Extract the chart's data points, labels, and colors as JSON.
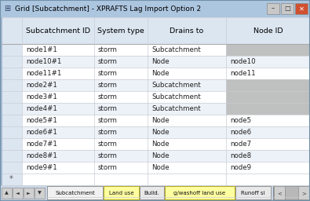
{
  "title": "Grid [Subcatchment] - XPRAFTS Lag Import Option 2",
  "columns": [
    "Subcatchment ID",
    "System type",
    "Drains to",
    "Node ID"
  ],
  "rows": [
    [
      "node1#1",
      "storm",
      "Subcatchment",
      ""
    ],
    [
      "node10#1",
      "storm",
      "Node",
      "node10"
    ],
    [
      "node11#1",
      "storm",
      "Node",
      "node11"
    ],
    [
      "node2#1",
      "storm",
      "Subcatchment",
      ""
    ],
    [
      "node3#1",
      "storm",
      "Subcatchment",
      ""
    ],
    [
      "node4#1",
      "storm",
      "Subcatchment",
      ""
    ],
    [
      "node5#1",
      "storm",
      "Node",
      "node5"
    ],
    [
      "node6#1",
      "storm",
      "Node",
      "node6"
    ],
    [
      "node7#1",
      "storm",
      "Node",
      "node7"
    ],
    [
      "node8#1",
      "storm",
      "Node",
      "node8"
    ],
    [
      "node9#1",
      "storm",
      "Node",
      "node9"
    ]
  ],
  "tabs": [
    "Subcatchment",
    "Land use",
    "Build.",
    "g/washoff land use",
    "Runoff si"
  ],
  "active_tab": "Subcatchment",
  "highlighted_tabs": [
    "Land use",
    "g/washoff land use"
  ],
  "header_bg": "#dce6f1",
  "row_bg_white": "#ffffff",
  "row_bg_alt": "#edf2f8",
  "gray_cell": "#bfc0c0",
  "grid_color": "#c8cdd4",
  "title_bar_color": "#adc6e0",
  "window_bg": "#ccd8ea",
  "tab_active_color": "#f0f0f0",
  "tab_highlighted_color": "#ffffa0",
  "cell_font_size": 6.2,
  "header_font_size": 6.8
}
